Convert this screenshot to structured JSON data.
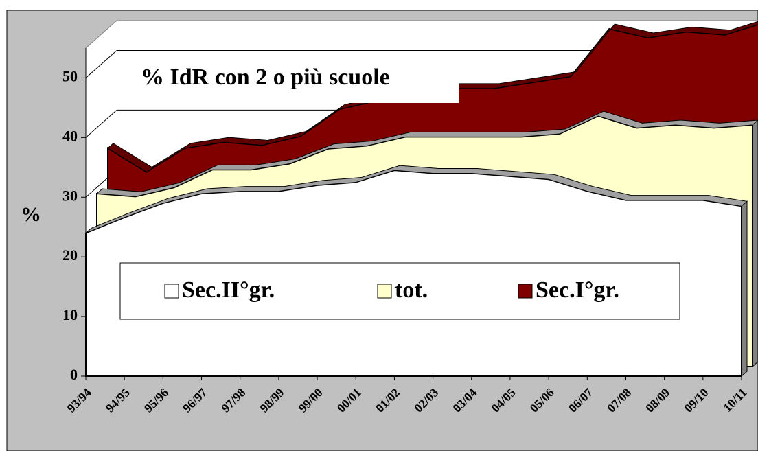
{
  "chart_data": {
    "type": "area3d",
    "title": "% IdR con 2 o più scuole",
    "y_label": "%",
    "categories": [
      "93/94",
      "94/95",
      "95/96",
      "96/97",
      "97/98",
      "98/99",
      "99/00",
      "00/01",
      "01/02",
      "02/03",
      "03/04",
      "04/05",
      "05/06",
      "06/07",
      "07/08",
      "08/09",
      "09/10",
      "10/11"
    ],
    "series": [
      {
        "name": "Sec.II°gr.",
        "color": "#ffffff",
        "values": [
          24,
          26.6,
          29,
          30.6,
          31,
          31,
          32,
          32.5,
          34.5,
          34,
          34,
          33.5,
          33,
          31,
          29.5,
          29.5,
          29.5,
          28.5
        ]
      },
      {
        "name": "tot.",
        "color": "#ffffcc",
        "values": [
          29,
          28.5,
          30,
          33,
          33,
          34,
          36.5,
          37,
          38.5,
          38.5,
          38.5,
          38.5,
          39,
          42,
          40,
          40.5,
          40,
          40.5
        ]
      },
      {
        "name": "Sec.I°gr.",
        "color": "#800000",
        "values": [
          35,
          31,
          35,
          36,
          35.5,
          37,
          41.5,
          43,
          44.5,
          45,
          45,
          46,
          47,
          55,
          53.5,
          54.5,
          54,
          56
        ]
      }
    ],
    "ylim": [
      0,
      55
    ],
    "yticks": [
      0,
      10,
      20,
      30,
      40,
      50
    ],
    "grid": true
  }
}
